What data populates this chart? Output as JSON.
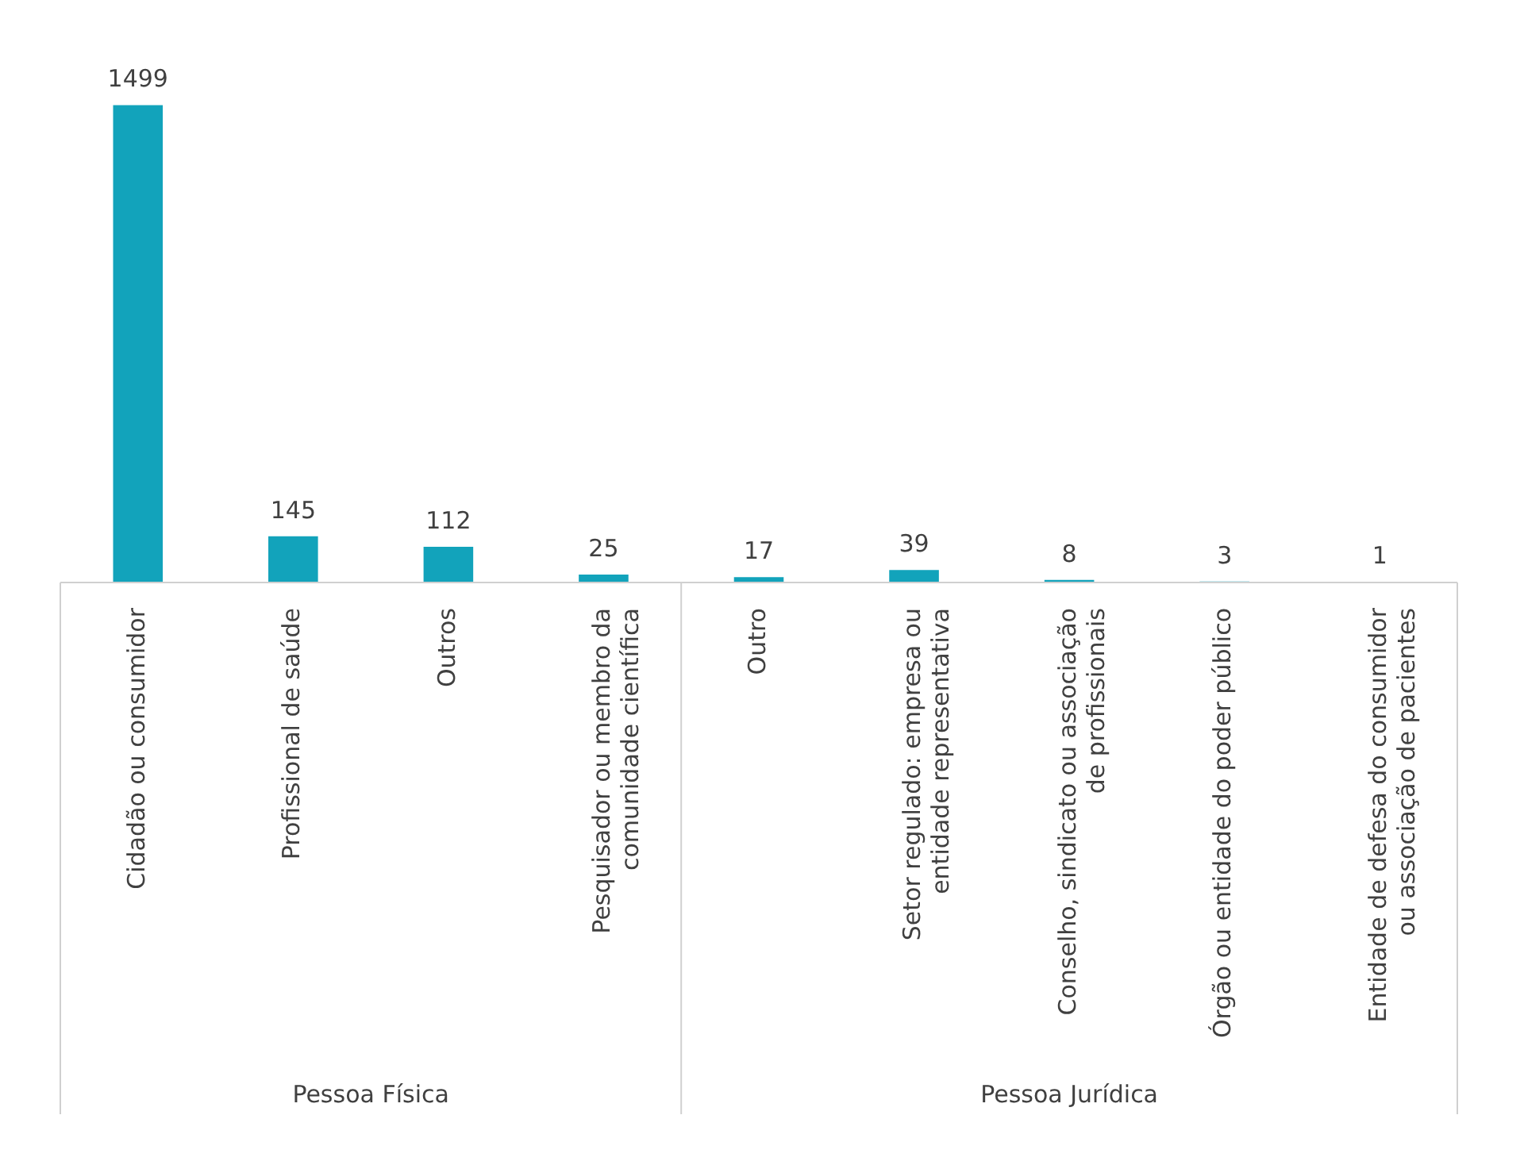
{
  "chart_data": {
    "type": "bar",
    "categories": [
      "Cidadão ou consumidor",
      "Profissional de saúde",
      "Outros",
      "Pesquisador ou membro da comunidade científica",
      "Outro",
      "Setor regulado: empresa ou entidade representativa",
      "Conselho, sindicato ou associação de profissionais",
      "Órgão ou entidade do poder público",
      "Entidade de defesa do consumidor ou associação de pacientes"
    ],
    "values": [
      1499,
      145,
      112,
      25,
      17,
      39,
      8,
      3,
      1
    ],
    "color": "#12a3bb",
    "data_labels": true,
    "grid": false,
    "legend": false,
    "annotations": [
      "Pessoa Física",
      "Pessoa Jurídica"
    ]
  }
}
